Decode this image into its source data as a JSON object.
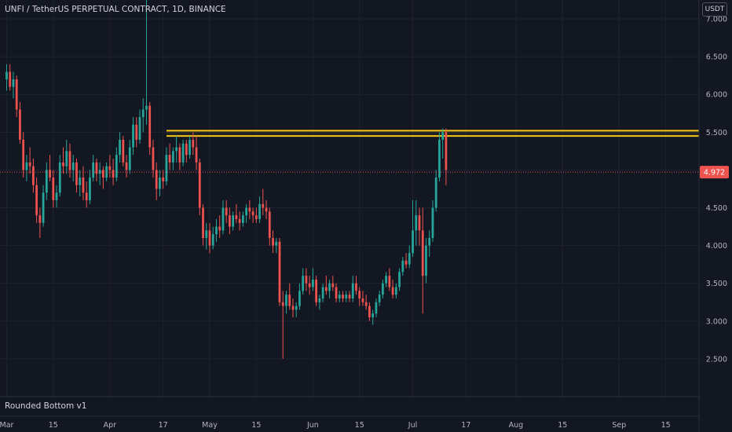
{
  "header": {
    "title": "UNFI / TetherUS PERPETUAL CONTRACT, 1D, BINANCE",
    "currency": "USDT"
  },
  "indicator": {
    "label": "Rounded Bottom v1"
  },
  "colors": {
    "background": "#131722",
    "up": "#26a69a",
    "down": "#ef5350",
    "zone": "#f5c518",
    "last_line": "#ef5350"
  },
  "chart_data": {
    "type": "candlestick",
    "yticks": [
      "7.000",
      "6.500",
      "6.000",
      "5.500",
      "5.000",
      "4.500",
      "4.000",
      "3.500",
      "3.000",
      "2.500"
    ],
    "yvalues": [
      7.0,
      6.5,
      6.0,
      5.5,
      5.0,
      4.5,
      4.0,
      3.5,
      3.0,
      2.5
    ],
    "ylim": [
      2.0,
      7.25
    ],
    "xticks": [
      {
        "label": "Mar",
        "day": 0
      },
      {
        "label": "15",
        "day": 14
      },
      {
        "label": "Apr",
        "day": 31
      },
      {
        "label": "17",
        "day": 47
      },
      {
        "label": "May",
        "day": 61
      },
      {
        "label": "15",
        "day": 75
      },
      {
        "label": "Jun",
        "day": 92
      },
      {
        "label": "15",
        "day": 106
      },
      {
        "label": "Jul",
        "day": 122
      },
      {
        "label": "17",
        "day": 138
      },
      {
        "label": "Aug",
        "day": 153
      },
      {
        "label": "15",
        "day": 167
      },
      {
        "label": "Sep",
        "day": 184
      },
      {
        "label": "15",
        "day": 198
      }
    ],
    "xlim": [
      -2,
      208
    ],
    "last_price": 4.972,
    "last_price_label": "4.972",
    "resistance_zone": {
      "top": 5.52,
      "bottom": 5.45,
      "start_day": 48
    },
    "ohlc": [
      [
        6.2,
        6.4,
        6.05,
        6.3
      ],
      [
        6.3,
        6.4,
        6.05,
        6.1
      ],
      [
        6.1,
        6.3,
        5.95,
        6.2
      ],
      [
        6.2,
        6.25,
        5.7,
        5.8
      ],
      [
        5.8,
        5.9,
        5.35,
        5.4
      ],
      [
        5.4,
        5.5,
        4.9,
        5.0
      ],
      [
        5.0,
        5.2,
        4.85,
        5.1
      ],
      [
        5.1,
        5.3,
        4.95,
        5.05
      ],
      [
        5.05,
        5.15,
        4.7,
        4.8
      ],
      [
        4.8,
        4.9,
        4.3,
        4.4
      ],
      [
        4.4,
        4.5,
        4.1,
        4.3
      ],
      [
        4.3,
        4.8,
        4.25,
        4.7
      ],
      [
        4.7,
        5.1,
        4.6,
        5.0
      ],
      [
        5.0,
        5.2,
        4.85,
        4.9
      ],
      [
        4.9,
        5.0,
        4.5,
        4.6
      ],
      [
        4.6,
        4.8,
        4.5,
        4.7
      ],
      [
        4.7,
        5.2,
        4.65,
        5.1
      ],
      [
        5.1,
        5.3,
        4.95,
        5.05
      ],
      [
        5.05,
        5.4,
        4.95,
        5.25
      ],
      [
        5.25,
        5.35,
        4.9,
        5.0
      ],
      [
        5.0,
        5.2,
        4.85,
        5.1
      ],
      [
        5.1,
        5.15,
        4.7,
        4.8
      ],
      [
        4.8,
        5.0,
        4.65,
        4.9
      ],
      [
        4.9,
        5.05,
        4.6,
        4.7
      ],
      [
        4.7,
        4.85,
        4.5,
        4.6
      ],
      [
        4.6,
        5.0,
        4.55,
        4.9
      ],
      [
        4.9,
        5.2,
        4.85,
        5.1
      ],
      [
        5.1,
        5.15,
        4.85,
        4.95
      ],
      [
        4.95,
        5.1,
        4.8,
        5.0
      ],
      [
        5.0,
        5.05,
        4.75,
        4.9
      ],
      [
        4.9,
        5.1,
        4.85,
        5.05
      ],
      [
        5.05,
        5.2,
        4.9,
        5.0
      ],
      [
        5.0,
        5.15,
        4.8,
        4.9
      ],
      [
        4.9,
        5.3,
        4.85,
        5.2
      ],
      [
        5.2,
        5.5,
        5.1,
        5.4
      ],
      [
        5.4,
        5.45,
        5.05,
        5.1
      ],
      [
        5.1,
        5.2,
        4.9,
        5.0
      ],
      [
        5.0,
        5.4,
        4.95,
        5.3
      ],
      [
        5.3,
        5.7,
        5.2,
        5.6
      ],
      [
        5.6,
        5.7,
        5.3,
        5.4
      ],
      [
        5.4,
        5.8,
        5.35,
        5.7
      ],
      [
        5.7,
        5.95,
        5.5,
        5.8
      ],
      [
        5.8,
        7.3,
        5.6,
        5.85
      ],
      [
        5.85,
        5.9,
        5.2,
        5.3
      ],
      [
        5.3,
        5.4,
        4.9,
        5.0
      ],
      [
        5.0,
        5.1,
        4.6,
        4.75
      ],
      [
        4.75,
        5.0,
        4.65,
        4.9
      ],
      [
        4.9,
        5.0,
        4.75,
        4.85
      ],
      [
        4.85,
        5.3,
        4.8,
        5.2
      ],
      [
        5.2,
        5.35,
        5.0,
        5.1
      ],
      [
        5.1,
        5.3,
        5.0,
        5.25
      ],
      [
        5.25,
        5.45,
        5.1,
        5.3
      ],
      [
        5.3,
        5.35,
        5.0,
        5.1
      ],
      [
        5.1,
        5.4,
        5.05,
        5.35
      ],
      [
        5.35,
        5.4,
        5.1,
        5.2
      ],
      [
        5.2,
        5.45,
        5.15,
        5.4
      ],
      [
        5.4,
        5.5,
        5.2,
        5.3
      ],
      [
        5.3,
        5.45,
        5.0,
        5.1
      ],
      [
        5.1,
        5.15,
        4.4,
        4.5
      ],
      [
        4.5,
        4.55,
        4.0,
        4.1
      ],
      [
        4.1,
        4.3,
        3.95,
        4.2
      ],
      [
        4.2,
        4.3,
        3.9,
        4.0
      ],
      [
        4.0,
        4.25,
        3.95,
        4.15
      ],
      [
        4.15,
        4.35,
        4.05,
        4.25
      ],
      [
        4.25,
        4.4,
        4.1,
        4.2
      ],
      [
        4.2,
        4.6,
        4.15,
        4.5
      ],
      [
        4.5,
        4.6,
        4.3,
        4.4
      ],
      [
        4.4,
        4.5,
        4.15,
        4.25
      ],
      [
        4.25,
        4.45,
        4.2,
        4.4
      ],
      [
        4.4,
        4.55,
        4.3,
        4.35
      ],
      [
        4.35,
        4.45,
        4.2,
        4.3
      ],
      [
        4.3,
        4.45,
        4.25,
        4.4
      ],
      [
        4.4,
        4.55,
        4.3,
        4.5
      ],
      [
        4.5,
        4.6,
        4.35,
        4.45
      ],
      [
        4.45,
        4.5,
        4.3,
        4.4
      ],
      [
        4.4,
        4.5,
        4.3,
        4.35
      ],
      [
        4.35,
        4.65,
        4.3,
        4.55
      ],
      [
        4.55,
        4.75,
        4.4,
        4.5
      ],
      [
        4.5,
        4.6,
        4.35,
        4.45
      ],
      [
        4.45,
        4.5,
        4.0,
        4.1
      ],
      [
        4.1,
        4.2,
        3.9,
        4.0
      ],
      [
        4.0,
        4.1,
        3.9,
        4.05
      ],
      [
        4.05,
        4.1,
        3.2,
        3.25
      ],
      [
        3.25,
        3.4,
        2.5,
        3.2
      ],
      [
        3.2,
        3.4,
        3.1,
        3.35
      ],
      [
        3.35,
        3.5,
        3.15,
        3.2
      ],
      [
        3.2,
        3.3,
        3.05,
        3.15
      ],
      [
        3.15,
        3.25,
        3.05,
        3.2
      ],
      [
        3.2,
        3.5,
        3.15,
        3.4
      ],
      [
        3.4,
        3.7,
        3.35,
        3.6
      ],
      [
        3.6,
        3.7,
        3.4,
        3.5
      ],
      [
        3.5,
        3.6,
        3.35,
        3.45
      ],
      [
        3.45,
        3.7,
        3.4,
        3.55
      ],
      [
        3.55,
        3.6,
        3.2,
        3.25
      ],
      [
        3.25,
        3.35,
        3.15,
        3.3
      ],
      [
        3.3,
        3.5,
        3.25,
        3.45
      ],
      [
        3.45,
        3.6,
        3.35,
        3.4
      ],
      [
        3.4,
        3.55,
        3.3,
        3.5
      ],
      [
        3.5,
        3.6,
        3.4,
        3.45
      ],
      [
        3.45,
        3.5,
        3.25,
        3.3
      ],
      [
        3.3,
        3.4,
        3.25,
        3.35
      ],
      [
        3.35,
        3.4,
        3.25,
        3.3
      ],
      [
        3.3,
        3.4,
        3.25,
        3.35
      ],
      [
        3.35,
        3.4,
        3.25,
        3.3
      ],
      [
        3.3,
        3.6,
        3.25,
        3.5
      ],
      [
        3.5,
        3.6,
        3.35,
        3.4
      ],
      [
        3.4,
        3.45,
        3.2,
        3.3
      ],
      [
        3.3,
        3.4,
        3.2,
        3.25
      ],
      [
        3.25,
        3.35,
        3.15,
        3.2
      ],
      [
        3.2,
        3.25,
        3.0,
        3.05
      ],
      [
        3.05,
        3.15,
        2.95,
        3.1
      ],
      [
        3.1,
        3.3,
        3.05,
        3.25
      ],
      [
        3.25,
        3.4,
        3.2,
        3.35
      ],
      [
        3.35,
        3.55,
        3.3,
        3.5
      ],
      [
        3.5,
        3.65,
        3.45,
        3.6
      ],
      [
        3.6,
        3.7,
        3.4,
        3.45
      ],
      [
        3.45,
        3.55,
        3.3,
        3.35
      ],
      [
        3.35,
        3.5,
        3.3,
        3.45
      ],
      [
        3.45,
        3.7,
        3.4,
        3.65
      ],
      [
        3.65,
        3.85,
        3.6,
        3.8
      ],
      [
        3.8,
        3.9,
        3.7,
        3.75
      ],
      [
        3.75,
        4.0,
        3.7,
        3.9
      ],
      [
        3.9,
        4.6,
        3.85,
        4.2
      ],
      [
        4.2,
        4.6,
        4.0,
        4.4
      ],
      [
        4.4,
        4.5,
        4.0,
        4.2
      ],
      [
        4.2,
        4.5,
        3.1,
        3.6
      ],
      [
        3.6,
        4.1,
        3.5,
        4.0
      ],
      [
        4.0,
        4.2,
        3.85,
        4.1
      ],
      [
        4.1,
        4.6,
        4.05,
        4.5
      ],
      [
        4.5,
        5.0,
        4.45,
        4.9
      ],
      [
        4.9,
        5.5,
        4.85,
        5.4
      ],
      [
        5.4,
        5.55,
        5.15,
        5.5
      ],
      [
        5.5,
        5.55,
        4.8,
        5.0
      ]
    ]
  }
}
